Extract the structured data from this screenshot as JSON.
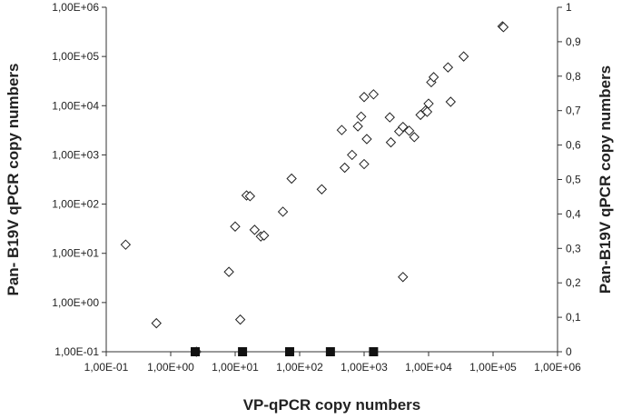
{
  "chart_data": {
    "type": "scatter",
    "title": "",
    "xlabel": "VP-qPCR copy numbers",
    "ylabel": "Pan- B19V qPCR copy numbers",
    "y2label": "Pan-B19V qPCR copy numbers",
    "x_scale": "log",
    "y_scale": "log",
    "y2_scale": "linear",
    "xlim": [
      0.1,
      1000000
    ],
    "ylim": [
      0.1,
      1000000
    ],
    "y2lim": [
      0,
      1
    ],
    "grid": false,
    "x_tick_labels": [
      "1,00E-01",
      "1,00E+00",
      "1,00E+01",
      "1,00E+02",
      "1,00E+03",
      "1,00E+04",
      "1,00E+05",
      "1,00E+06"
    ],
    "y_tick_labels": [
      "1,00E-01",
      "1,00E+00",
      "1,00E+01",
      "1,00E+02",
      "1,00E+03",
      "1,00E+04",
      "1,00E+05",
      "1,00E+06"
    ],
    "y2_tick_labels": [
      "0",
      "0,1",
      "0,2",
      "0,3",
      "0,4",
      "0,5",
      "0,6",
      "0,7",
      "0,8",
      "0,9",
      "1"
    ],
    "series": [
      {
        "marker": "open-diamond",
        "axis": "left",
        "points": [
          [
            0.2,
            15
          ],
          [
            0.6,
            0.38
          ],
          [
            2.5,
            0.1
          ],
          [
            8,
            4.2
          ],
          [
            10,
            35
          ],
          [
            12,
            0.45
          ],
          [
            15,
            150
          ],
          [
            17,
            145
          ],
          [
            20,
            30
          ],
          [
            25,
            22
          ],
          [
            28,
            23
          ],
          [
            55,
            70
          ],
          [
            75,
            330
          ],
          [
            220,
            200
          ],
          [
            500,
            550
          ],
          [
            450,
            3200
          ],
          [
            650,
            1000
          ],
          [
            800,
            3800
          ],
          [
            900,
            6000
          ],
          [
            1000,
            15000
          ],
          [
            1100,
            2100
          ],
          [
            1000,
            650
          ],
          [
            1400,
            17000
          ],
          [
            2500,
            5800
          ],
          [
            2600,
            1800
          ],
          [
            3500,
            3000
          ],
          [
            4000,
            3700
          ],
          [
            4000,
            3.3
          ],
          [
            5000,
            3100
          ],
          [
            6000,
            2300
          ],
          [
            7500,
            6500
          ],
          [
            9000,
            8000
          ],
          [
            9500,
            7500
          ],
          [
            10000,
            11000
          ],
          [
            11000,
            30000
          ],
          [
            12000,
            38000
          ],
          [
            20000,
            60000
          ],
          [
            22000,
            12000
          ],
          [
            35000,
            100000
          ],
          [
            140000,
            410000
          ],
          [
            145000,
            395000
          ]
        ]
      },
      {
        "marker": "filled-square",
        "axis": "right",
        "points": [
          [
            2.4,
            0
          ],
          [
            13,
            0
          ],
          [
            70,
            0
          ],
          [
            300,
            0
          ],
          [
            1400,
            0
          ]
        ]
      }
    ]
  }
}
